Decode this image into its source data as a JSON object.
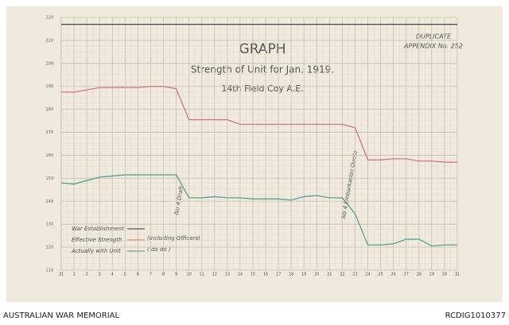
{
  "chart_data": {
    "type": "line",
    "title": "GRAPH",
    "subtitle": "Strength of Unit for Jan. 1919.",
    "unit": "14th Field Coy A.E.",
    "stamp": [
      "DUPLICATE",
      "APPENDIX No. 252"
    ],
    "annotations": [
      "No 4 Draft",
      "No 4 Embarkation Quota"
    ],
    "legend_notes": [
      "(including Officers)",
      "( do do )"
    ],
    "categories": [
      "31",
      "1",
      "2",
      "3",
      "4",
      "5",
      "6",
      "7",
      "8",
      "9",
      "10",
      "11",
      "12",
      "13",
      "14",
      "15",
      "16",
      "17",
      "18",
      "19",
      "20",
      "21",
      "22",
      "23",
      "24",
      "25",
      "26",
      "27",
      "28",
      "29",
      "30",
      "31"
    ],
    "series": [
      {
        "name": "War Establishment",
        "color": "#333344",
        "values": [
          217,
          217,
          217,
          217,
          217,
          217,
          217,
          217,
          217,
          217,
          217,
          217,
          217,
          217,
          217,
          217,
          217,
          217,
          217,
          217,
          217,
          217,
          217,
          217,
          217,
          217,
          217,
          217,
          217,
          217,
          217,
          217
        ]
      },
      {
        "name": "Effective Strength",
        "color": "#d0707a",
        "values": [
          187.5,
          187.5,
          188.5,
          189.5,
          189.5,
          189.5,
          189.5,
          190,
          190,
          189,
          175.5,
          175.5,
          175.5,
          175.5,
          173.5,
          173.5,
          173.5,
          173.5,
          173.5,
          173.5,
          173.5,
          173.5,
          173.5,
          172,
          158,
          158,
          158.5,
          158.5,
          157.5,
          157.5,
          157,
          157
        ]
      },
      {
        "name": "Actually with Unit",
        "color": "#4a9a90",
        "values": [
          148,
          147.5,
          149,
          150.5,
          151,
          151.5,
          151.5,
          151.5,
          151.5,
          151.5,
          141.5,
          141.5,
          142,
          141.5,
          141.5,
          141,
          141,
          141,
          140.5,
          142,
          142.5,
          141.5,
          141.5,
          134.5,
          121,
          121,
          121.5,
          123.5,
          123.5,
          120.5,
          121,
          121
        ]
      }
    ],
    "ylim": [
      110,
      220
    ],
    "yticks": [
      110,
      120,
      130,
      140,
      150,
      160,
      170,
      180,
      190,
      200,
      210,
      220
    ],
    "grid": true,
    "footer": [
      "AUSTRALIAN WAR MEMORIAL",
      "RCDIG1010377"
    ]
  }
}
